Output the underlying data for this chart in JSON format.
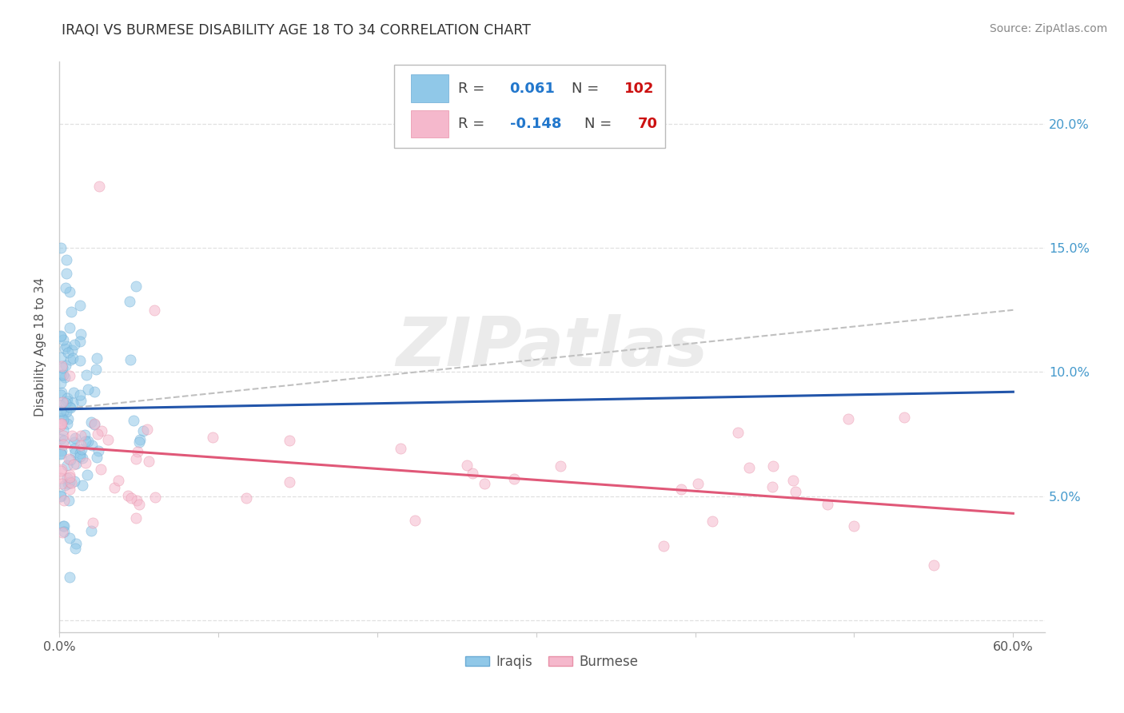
{
  "title": "IRAQI VS BURMESE DISABILITY AGE 18 TO 34 CORRELATION CHART",
  "source": "Source: ZipAtlas.com",
  "ylabel": "Disability Age 18 to 34",
  "xlim": [
    0.0,
    0.62
  ],
  "ylim": [
    -0.005,
    0.225
  ],
  "xtick_positions": [
    0.0,
    0.1,
    0.2,
    0.3,
    0.4,
    0.5,
    0.6
  ],
  "xtick_labels": [
    "0.0%",
    "",
    "",
    "",
    "",
    "",
    "60.0%"
  ],
  "ytick_positions": [
    0.0,
    0.05,
    0.1,
    0.15,
    0.2
  ],
  "ytick_labels_right": [
    "",
    "5.0%",
    "10.0%",
    "15.0%",
    "20.0%"
  ],
  "iraqi_color": "#90c8e8",
  "iraqi_edge_color": "#6aaad4",
  "burmese_color": "#f5b8cc",
  "burmese_edge_color": "#e890a8",
  "iraqi_line_color": "#2255aa",
  "burmese_line_color": "#e05878",
  "dashed_color": "#c0c0c0",
  "background_color": "#ffffff",
  "grid_color": "#e0e0e0",
  "watermark": "ZIPatlas",
  "iraqi_R": "0.061",
  "iraqi_N": "102",
  "burmese_R": "-0.148",
  "burmese_N": "70",
  "iraqi_trend": [
    0.0,
    0.6,
    0.085,
    0.092
  ],
  "burmese_trend": [
    0.0,
    0.6,
    0.07,
    0.043
  ],
  "dashed_trend": [
    0.0,
    0.6,
    0.085,
    0.125
  ],
  "title_color": "#333333",
  "source_color": "#888888",
  "ylabel_color": "#555555",
  "right_tick_color": "#4499cc",
  "bottom_tick_color": "#555555",
  "marker_size": 90,
  "marker_alpha": 0.55
}
